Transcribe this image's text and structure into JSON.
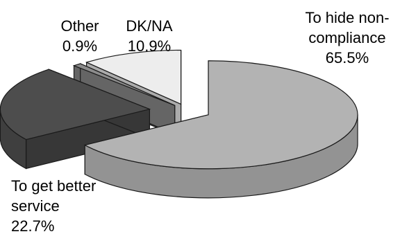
{
  "chart_data": {
    "type": "pie",
    "style": "3d-exploded",
    "slices": [
      {
        "label": "To hide non-compliance",
        "label_lines": [
          "To hide non-",
          "compliance"
        ],
        "value": 65.5,
        "value_text": "65.5%",
        "color": "#b3b3b3"
      },
      {
        "label": "To get better service",
        "label_lines": [
          "To get better",
          "service"
        ],
        "value": 22.7,
        "value_text": "22.7%",
        "color": "#4d4d4d"
      },
      {
        "label": "Other",
        "label_lines": [
          "Other"
        ],
        "value": 0.9,
        "value_text": "0.9%",
        "color": "#8c8c8c"
      },
      {
        "label": "DK/NA",
        "label_lines": [
          "DK/NA"
        ],
        "value": 10.9,
        "value_text": "10.9%",
        "color": "#ededed"
      }
    ]
  }
}
